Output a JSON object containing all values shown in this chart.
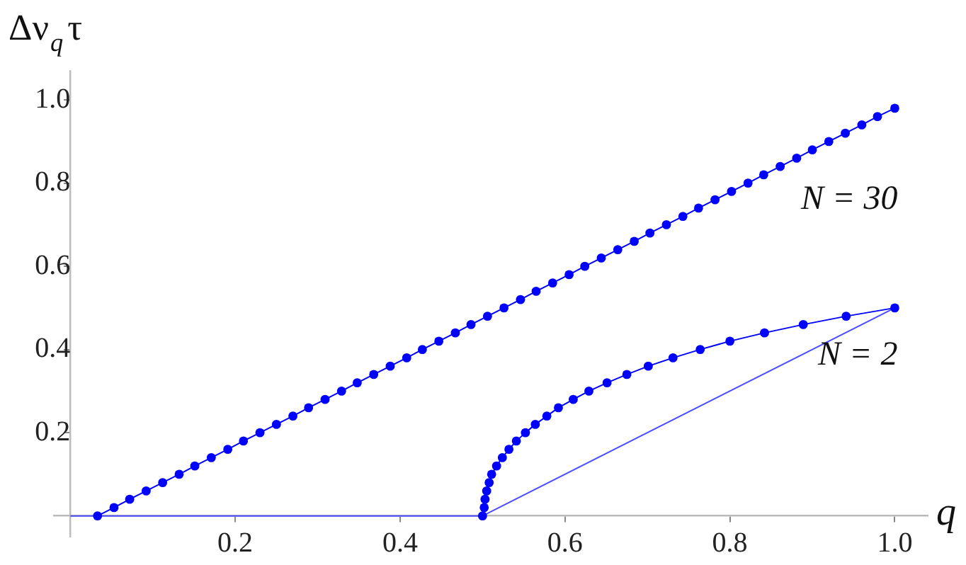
{
  "chart_data": {
    "type": "line",
    "xlabel": "q",
    "ylabel": "Δν$_{q}$τ",
    "xlim": [
      -0.02,
      1.04
    ],
    "ylim": [
      -0.05,
      1.07
    ],
    "xticks": [
      0.2,
      0.4,
      0.6,
      0.8,
      {
        "value": 1,
        "label": "1.0"
      }
    ],
    "yticks": [
      0.2,
      0.4,
      0.6,
      0.8,
      {
        "value": 1,
        "label": "1.0"
      }
    ],
    "marker": "circle",
    "series": [
      {
        "name": "N = 30",
        "color": "#0000ff",
        "x": [
          0.033,
          0.053,
          0.072,
          0.092,
          0.112,
          0.132,
          0.151,
          0.171,
          0.191,
          0.21,
          0.23,
          0.25,
          0.27,
          0.289,
          0.309,
          0.329,
          0.348,
          0.368,
          0.388,
          0.408,
          0.427,
          0.447,
          0.467,
          0.486,
          0.506,
          0.526,
          0.546,
          0.565,
          0.585,
          0.605,
          0.624,
          0.644,
          0.664,
          0.684,
          0.703,
          0.723,
          0.743,
          0.762,
          0.782,
          0.802,
          0.822,
          0.841,
          0.861,
          0.881,
          0.9,
          0.92,
          0.94,
          0.96,
          0.979,
          1.0
        ],
        "values": [
          0,
          0.02,
          0.04,
          0.06,
          0.08,
          0.1,
          0.12,
          0.14,
          0.16,
          0.18,
          0.2,
          0.22,
          0.24,
          0.26,
          0.28,
          0.3,
          0.32,
          0.34,
          0.36,
          0.38,
          0.4,
          0.42,
          0.44,
          0.46,
          0.48,
          0.5,
          0.52,
          0.54,
          0.56,
          0.58,
          0.6,
          0.62,
          0.64,
          0.66,
          0.68,
          0.7,
          0.72,
          0.74,
          0.76,
          0.78,
          0.8,
          0.82,
          0.84,
          0.86,
          0.88,
          0.9,
          0.92,
          0.94,
          0.96,
          0.98
        ]
      },
      {
        "name": "N = 2",
        "color": "#0000ff",
        "x": [
          0.5,
          0.502,
          0.503,
          0.505,
          0.508,
          0.511,
          0.517,
          0.524,
          0.532,
          0.541,
          0.552,
          0.564,
          0.578,
          0.592,
          0.61,
          0.629,
          0.651,
          0.675,
          0.701,
          0.731,
          0.764,
          0.8,
          0.842,
          0.889,
          0.941,
          1.0
        ],
        "values": [
          0,
          0.02,
          0.04,
          0.06,
          0.08,
          0.1,
          0.12,
          0.14,
          0.16,
          0.18,
          0.2,
          0.22,
          0.24,
          0.26,
          0.28,
          0.3,
          0.32,
          0.34,
          0.36,
          0.38,
          0.4,
          0.42,
          0.44,
          0.46,
          0.48,
          0.5
        ]
      },
      {
        "color": "#4d4dff",
        "marker": "none",
        "x": [
          0,
          0.5
        ],
        "values": [
          0,
          0
        ]
      },
      {
        "color": "#4d4dff",
        "marker": "none",
        "x": [
          0.5,
          1.0
        ],
        "values": [
          0,
          0.5
        ]
      }
    ]
  }
}
